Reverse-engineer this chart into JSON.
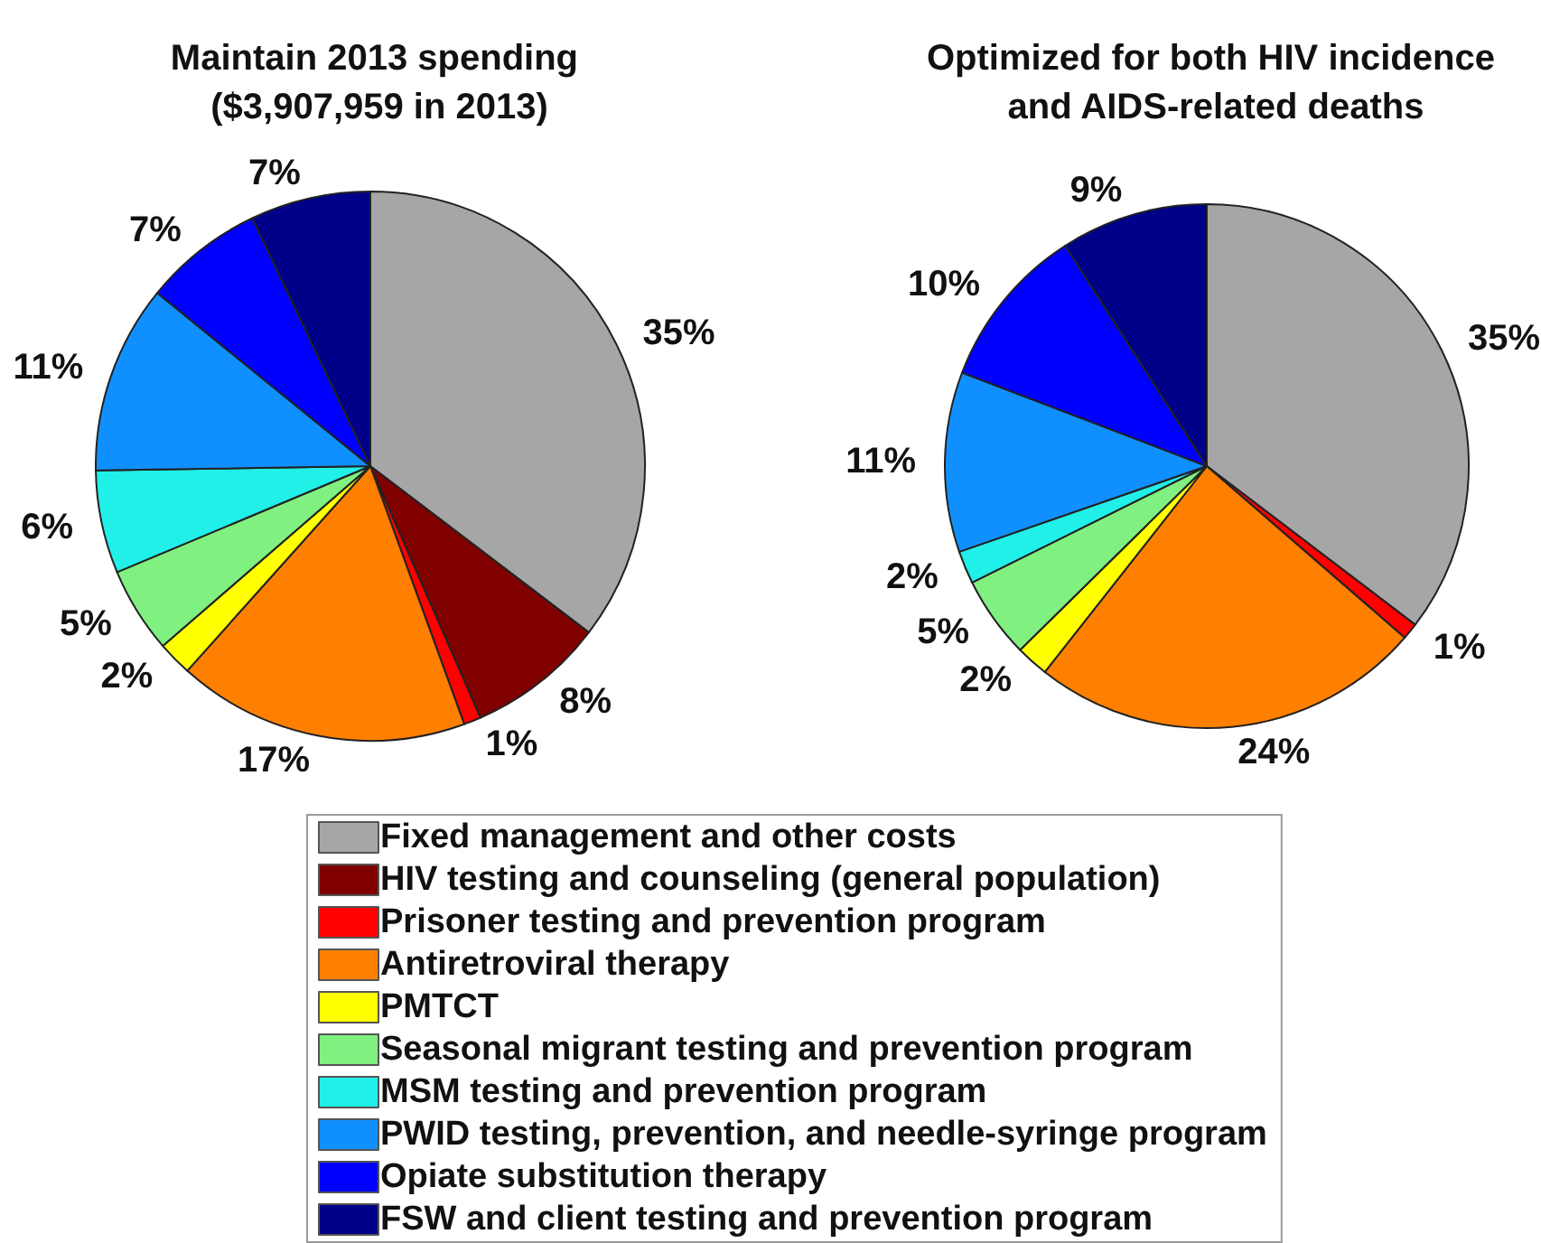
{
  "chart_data": {
    "type": "pie",
    "categories": [
      "Fixed management and other costs",
      "HIV testing and counseling (general population)",
      "Prisoner testing and prevention program",
      "Antiretroviral therapy",
      "PMTCT",
      "Seasonal migrant testing and prevention program",
      "MSM testing and prevention program",
      "PWID testing, prevention, and needle-syringe program",
      "Opiate substitution therapy",
      "FSW and client testing and prevention program"
    ],
    "colors": [
      "#a6a6a6",
      "#800000",
      "#ff0000",
      "#ff8000",
      "#ffff00",
      "#80f080",
      "#20f0e8",
      "#1090ff",
      "#0000ff",
      "#000088"
    ],
    "series": [
      {
        "name": "Maintain 2013 spending ($3,907,959 in 2013)",
        "values": [
          35,
          8,
          1,
          17,
          2,
          5,
          6,
          11,
          7,
          7
        ],
        "value_labels": [
          "35%",
          "8%",
          "1%",
          "17%",
          "2%",
          "5%",
          "6%",
          "11%",
          "7%",
          "7%"
        ]
      },
      {
        "name": "Optimized for both HIV incidence and AIDS-related deaths",
        "values": [
          35,
          0,
          1,
          24,
          2,
          5,
          2,
          11,
          10,
          9
        ],
        "value_labels": [
          "35%",
          null,
          "1%",
          "24%",
          "2%",
          "5%",
          "2%",
          "11%",
          "10%",
          "9%"
        ]
      }
    ],
    "legend": "bottom"
  }
}
